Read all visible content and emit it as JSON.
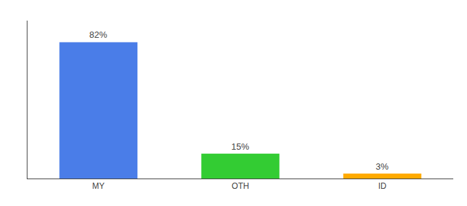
{
  "chart_data": {
    "type": "bar",
    "categories": [
      "MY",
      "OTH",
      "ID"
    ],
    "values": [
      82,
      15,
      3
    ],
    "value_labels": [
      "82%",
      "15%",
      "3%"
    ],
    "colors": [
      "#4a7de8",
      "#33cc33",
      "#ffaa00"
    ],
    "ylim": [
      0,
      95
    ],
    "yticks": [],
    "data_labels": true,
    "tick_labels": "x",
    "grid": false
  }
}
